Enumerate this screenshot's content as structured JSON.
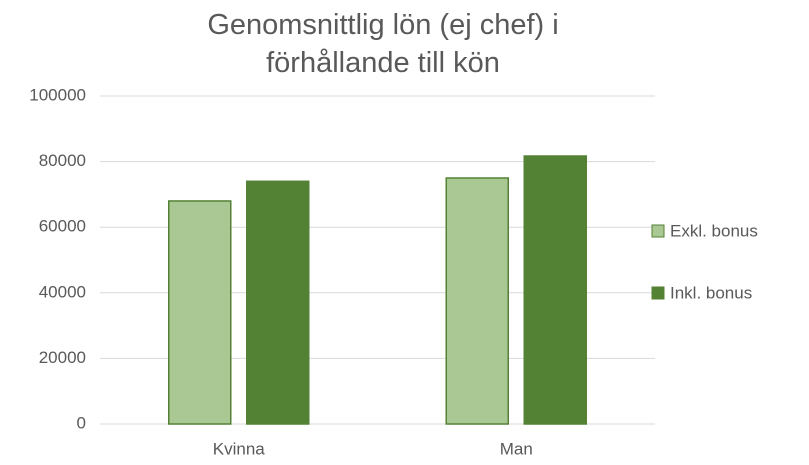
{
  "chart_data": {
    "type": "bar",
    "title": "Genomsnittlig lön (ej chef) i förhållande till kön",
    "categories": [
      "Kvinna",
      "Man"
    ],
    "series": [
      {
        "name": "Exkl. bonus",
        "color": "#a9c894",
        "values": [
          68000,
          75000
        ]
      },
      {
        "name": "Inkl. bonus",
        "color": "#548235",
        "values": [
          74000,
          81700
        ]
      }
    ],
    "ylim": [
      0,
      100000
    ],
    "yticks": [
      0,
      20000,
      40000,
      60000,
      80000,
      100000
    ],
    "grid": true,
    "legend": "right"
  }
}
